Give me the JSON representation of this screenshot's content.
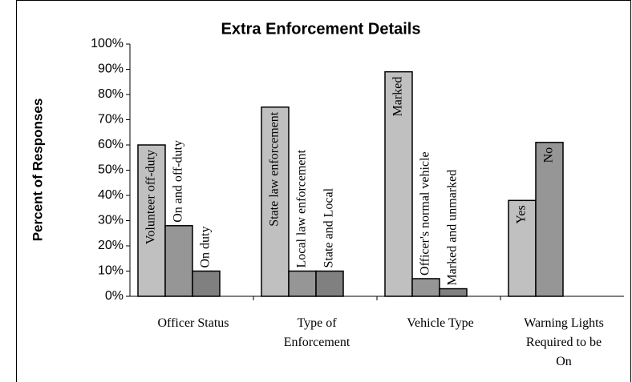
{
  "chart_data": {
    "type": "grouped-bar",
    "title": "Extra Enforcement Details",
    "y_label": "Percent of Responses",
    "ylim": [
      0,
      100
    ],
    "yticks": [
      {
        "value": 0,
        "label": "0%"
      },
      {
        "value": 10,
        "label": "10%"
      },
      {
        "value": 20,
        "label": "20%"
      },
      {
        "value": 30,
        "label": "30%"
      },
      {
        "value": 40,
        "label": "40%"
      },
      {
        "value": 50,
        "label": "50%"
      },
      {
        "value": 60,
        "label": "60%"
      },
      {
        "value": 70,
        "label": "70%"
      },
      {
        "value": 80,
        "label": "80%"
      },
      {
        "value": 90,
        "label": "90%"
      },
      {
        "value": 100,
        "label": "100%"
      }
    ],
    "colors": [
      "#c0c0c0",
      "#969696",
      "#808080"
    ],
    "groups": [
      {
        "label": "Officer Status",
        "bars": [
          "Volunteer off-duty",
          "On and off-duty",
          "On duty"
        ],
        "values": [
          60,
          28,
          10
        ]
      },
      {
        "label": "Type of Enforcement",
        "bars": [
          "State law enforcement",
          "Local law enforcement",
          "State and Local"
        ],
        "values": [
          75,
          10,
          10
        ]
      },
      {
        "label": "Vehicle Type",
        "bars": [
          "Marked",
          "Officer's normal vehicle",
          "Marked and unmarked"
        ],
        "values": [
          89,
          7,
          3
        ]
      },
      {
        "label": "Warning Lights Required to be On",
        "bars": [
          "Yes",
          "No"
        ],
        "values": [
          38,
          61
        ]
      }
    ]
  }
}
